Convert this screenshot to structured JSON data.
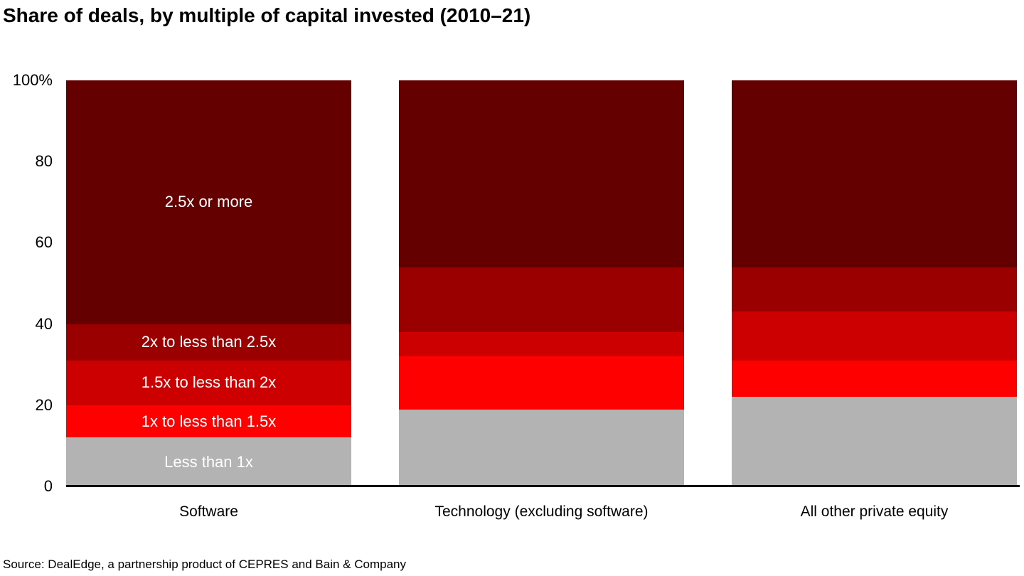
{
  "chart_data": {
    "type": "bar",
    "stacked": true,
    "title": "Share of deals, by multiple of capital invested (2010–21)",
    "categories": [
      "Software",
      "Technology (excluding software)",
      "All other private equity"
    ],
    "series": [
      {
        "name": "Less than 1x",
        "color": "#b3b3b3",
        "values": [
          12,
          19,
          22
        ]
      },
      {
        "name": "1x to less than 1.5x",
        "color": "#ff0000",
        "values": [
          8,
          13,
          9
        ]
      },
      {
        "name": "1.5x to less than 2x",
        "color": "#cc0000",
        "values": [
          11,
          6,
          12
        ]
      },
      {
        "name": "2x to less than 2.5x",
        "color": "#9b0000",
        "values": [
          9,
          16,
          11
        ]
      },
      {
        "name": "2.5x or more",
        "color": "#650000",
        "values": [
          60,
          46,
          46
        ]
      }
    ],
    "ylim": [
      0,
      100
    ],
    "y_ticks": [
      {
        "value": 0,
        "label": "0"
      },
      {
        "value": 20,
        "label": "20"
      },
      {
        "value": 40,
        "label": "40"
      },
      {
        "value": 60,
        "label": "60"
      },
      {
        "value": 80,
        "label": "80"
      },
      {
        "value": 100,
        "label": "100%"
      }
    ],
    "grid": false,
    "legend": "labels-inside-first-bar",
    "segment_label_color": "#ffffff",
    "axis_color": "#000000"
  },
  "source": {
    "text": "Source: DealEdge, a partnership product of CEPRES and Bain & Company"
  }
}
